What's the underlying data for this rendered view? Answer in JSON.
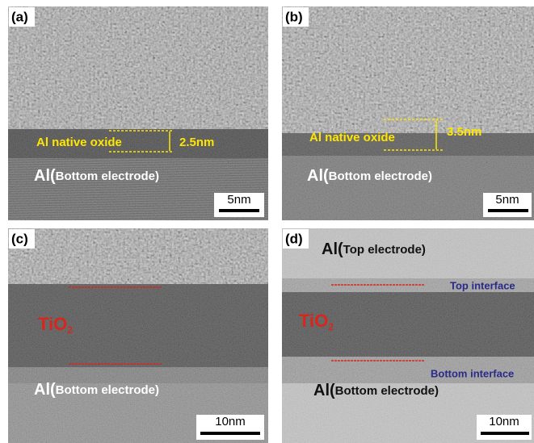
{
  "panels": [
    {
      "label": "(a)",
      "oxide": "Al native oxide",
      "thickness": "2.5nm",
      "material": "Al(",
      "material_note": "Bottom electrode)",
      "scale_bar": "5nm"
    },
    {
      "label": "(b)",
      "oxide": "Al native oxide",
      "thickness": "3.5nm",
      "material": "Al(",
      "material_note": "Bottom electrode)",
      "scale_bar": "5nm"
    },
    {
      "label": "(c)",
      "layer": "TiO",
      "layer_sub": "2",
      "material": "Al(",
      "material_note": "Bottom electrode)",
      "scale_bar": "10nm"
    },
    {
      "label": "(d)",
      "top_material": "Al(",
      "top_material_note": "Top electrode)",
      "top_interface": "Top interface",
      "layer": "TiO",
      "layer_sub": "2",
      "bottom_interface": "Bottom interface",
      "material": "Al(",
      "material_note": "Bottom electrode)",
      "scale_bar": "10nm"
    }
  ]
}
